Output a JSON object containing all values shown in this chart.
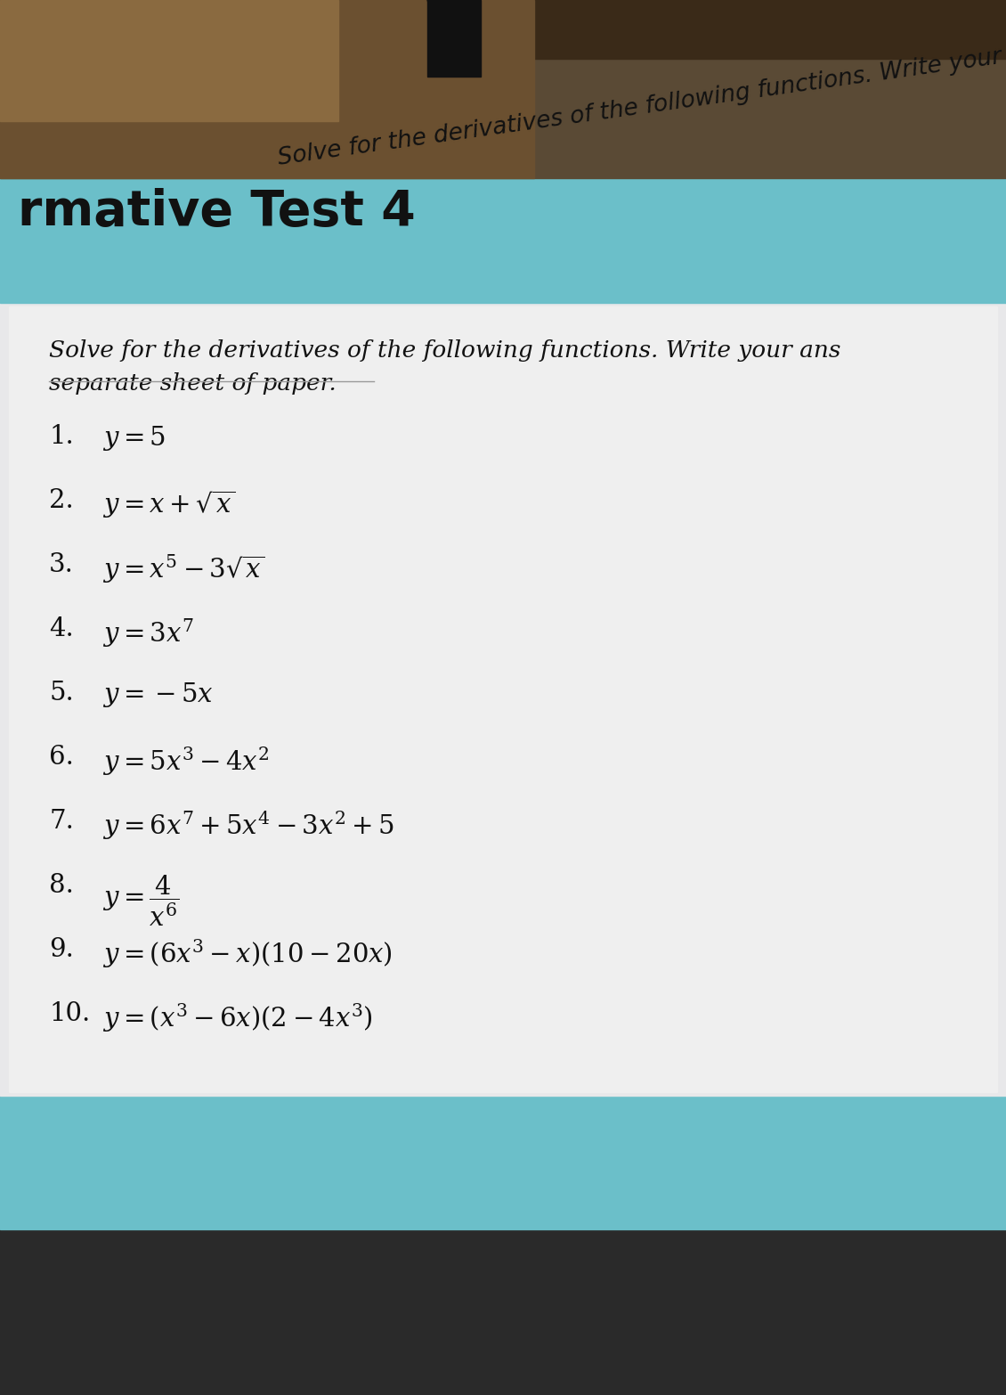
{
  "title": "rmative Test 4",
  "teal_color": "#6bbfc9",
  "dark_top_color": "#5a4a35",
  "dark_bottom_color": "#2a2a2a",
  "paper_color": "#e8e8ea",
  "text_color": "#1a1a1a",
  "instruction_line1": "Solve for the derivatives of the following functions. Write your ans",
  "instruction_line2": "separate sheet of paper.",
  "problems": [
    {
      "num": "1.",
      "expr": "$y = 5$"
    },
    {
      "num": "2.",
      "expr": "$y = x + \\sqrt{x}$"
    },
    {
      "num": "3.",
      "expr": "$y = x^5 - 3\\sqrt{x}$"
    },
    {
      "num": "4.",
      "expr": "$y = 3x^7$"
    },
    {
      "num": "5.",
      "expr": "$y = -5x$"
    },
    {
      "num": "6.",
      "expr": "$y = 5x^3 - 4x^2$"
    },
    {
      "num": "7.",
      "expr": "$y = 6x^7 + 5x^4 - 3x^2 + 5$"
    },
    {
      "num": "8.",
      "expr": "$y = \\dfrac{4}{x^6}$"
    },
    {
      "num": "9.",
      "expr": "$y = (6x^3 - x)(10 - 20x)$"
    },
    {
      "num": "10.",
      "expr": "$y = (x^3 - 6x)(2 - 4x^3)$"
    }
  ],
  "fig_width": 11.3,
  "fig_height": 15.66,
  "dpi": 100
}
